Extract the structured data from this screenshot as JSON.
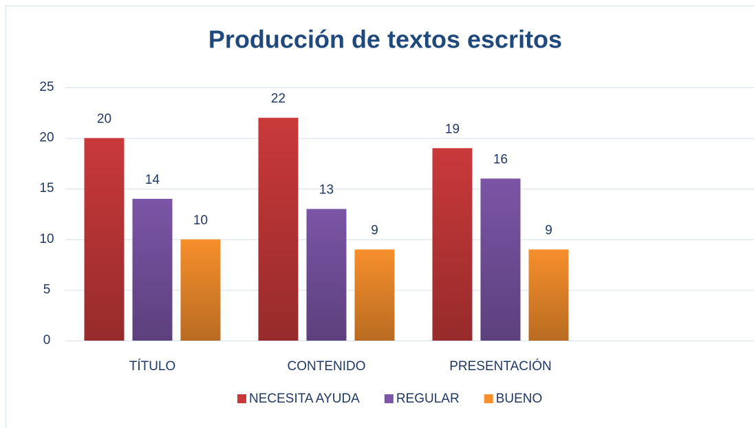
{
  "chart_data": {
    "type": "bar",
    "title": "Producción de textos escritos",
    "categories": [
      "TÍTULO",
      "CONTENIDO",
      "PRESENTACIÓN",
      null
    ],
    "series": [
      {
        "name": "NECESITA AYUDA",
        "color": "#c9393a",
        "values": [
          20,
          22,
          19,
          null
        ]
      },
      {
        "name": "REGULAR",
        "color": "#7b55a6",
        "values": [
          14,
          13,
          16,
          null
        ]
      },
      {
        "name": "BUENO",
        "color": "#f68f2c",
        "values": [
          10,
          9,
          9,
          null
        ]
      }
    ],
    "ylim": [
      0,
      25
    ],
    "yticks": [
      0,
      5,
      10,
      15,
      20,
      25
    ],
    "grid": true,
    "legend": "bottom"
  }
}
